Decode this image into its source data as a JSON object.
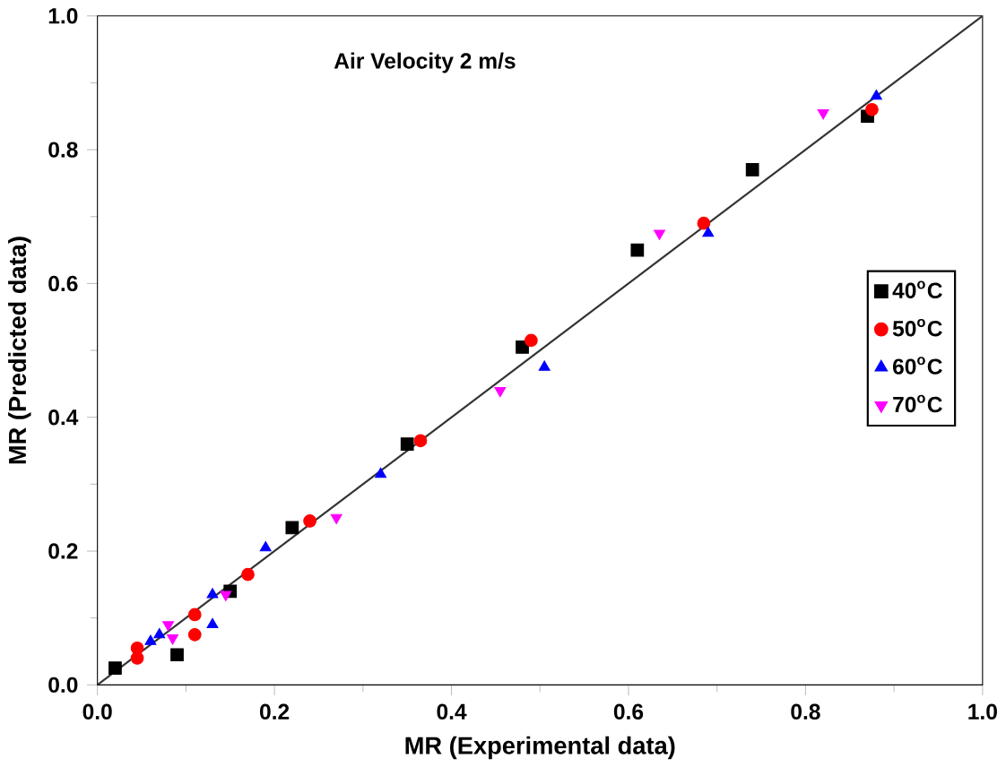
{
  "chart_data": {
    "type": "scatter",
    "annotations": [
      "Air Velocity 2 m/s"
    ],
    "xlabel": "MR (Experimental data)",
    "ylabel": "MR (Predicted data)",
    "xlim": [
      0,
      1
    ],
    "ylim": [
      0,
      1
    ],
    "xticks": [
      {
        "value": 0,
        "label": "0.0"
      },
      0.2,
      0.4,
      0.6,
      0.8,
      {
        "value": 1,
        "label": "1.0"
      }
    ],
    "yticks": [
      {
        "value": 0,
        "label": "0.0"
      },
      0.2,
      0.4,
      0.6,
      0.8,
      {
        "value": 1,
        "label": "1.0"
      }
    ],
    "legend": "right",
    "grid": false,
    "series": [
      {
        "name": "40$^{o}$C",
        "color": "#000000",
        "marker": "square",
        "x": [
          0.02,
          0.09,
          0.15,
          0.22,
          0.35,
          0.48,
          0.61,
          0.74,
          0.87
        ],
        "values": [
          0.025,
          0.045,
          0.14,
          0.235,
          0.36,
          0.505,
          0.65,
          0.77,
          0.85
        ]
      },
      {
        "name": "50$^{o}$C",
        "color": "#ff0000",
        "marker": "circle",
        "x": [
          0.045,
          0.045,
          0.11,
          0.11,
          0.17,
          0.24,
          0.365,
          0.49,
          0.685,
          0.875
        ],
        "values": [
          0.04,
          0.055,
          0.075,
          0.105,
          0.165,
          0.245,
          0.365,
          0.515,
          0.69,
          0.86
        ]
      },
      {
        "name": "60$^{o}$C",
        "color": "#0000ff",
        "marker": "triangle",
        "x": [
          0.06,
          0.07,
          0.13,
          0.13,
          0.19,
          0.32,
          0.505,
          0.69,
          0.88
        ],
        "values": [
          0.065,
          0.075,
          0.09,
          0.135,
          0.205,
          0.315,
          0.475,
          0.675,
          0.88
        ]
      },
      {
        "name": "70$^{o}$C",
        "color": "#ff00ff",
        "marker": "triangle down",
        "x": [
          0.08,
          0.085,
          0.145,
          0.27,
          0.455,
          0.635,
          0.82
        ],
        "values": [
          0.09,
          0.07,
          0.135,
          0.25,
          0.44,
          0.675,
          0.855
        ]
      },
      {
        "type": "line",
        "color": "#333333",
        "marker": "none",
        "x": [
          0,
          1
        ],
        "values": [
          0,
          1
        ]
      }
    ]
  }
}
